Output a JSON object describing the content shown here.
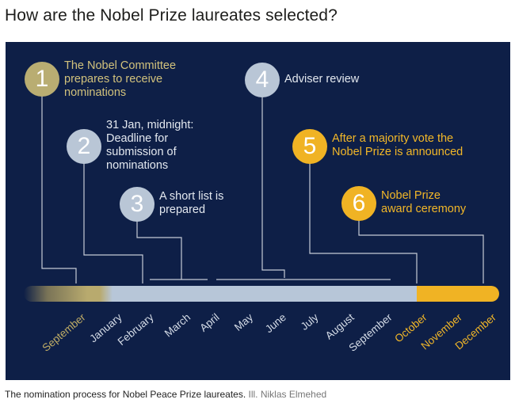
{
  "title": "How are the Nobel Prize laureates selected?",
  "steps": [
    {
      "number": "1",
      "text_lines": [
        "The Nobel Committee",
        "prepares to receive",
        "nominations"
      ]
    },
    {
      "number": "2",
      "text_lines": [
        "31 Jan, midnight:",
        "Deadline for",
        "submission of",
        "nominations"
      ]
    },
    {
      "number": "3",
      "text_lines": [
        "A short list is",
        "prepared"
      ]
    },
    {
      "number": "4",
      "text_lines": [
        "Adviser review"
      ]
    },
    {
      "number": "5",
      "text_lines": [
        "After a majority vote the",
        "Nobel Prize is announced"
      ]
    },
    {
      "number": "6",
      "text_lines": [
        "Nobel Prize",
        "award ceremony"
      ]
    }
  ],
  "months": [
    "September",
    "January",
    "February",
    "March",
    "April",
    "May",
    "June",
    "July",
    "August",
    "September",
    "October",
    "November",
    "December"
  ],
  "colors": {
    "background": "#0e1f47",
    "gold": "#b9ad72",
    "grey": "#b9c6d6",
    "yellow": "#f0b324"
  },
  "caption": {
    "text": "The nomination process for Nobel Peace Prize laureates. ",
    "credit": "Ill. Niklas Elmehed"
  }
}
